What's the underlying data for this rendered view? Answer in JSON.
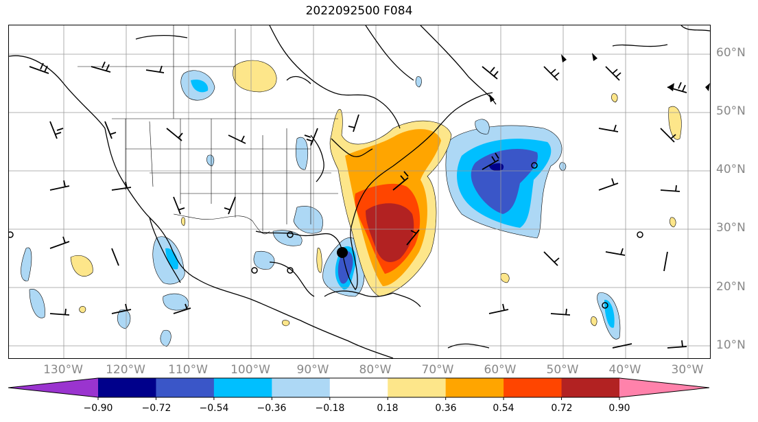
{
  "title": "2022092500 F084",
  "lat_labels": [
    "60°N",
    "50°N",
    "40°N",
    "30°N",
    "20°N",
    "10°N"
  ],
  "lon_labels": [
    "130°W",
    "120°W",
    "110°W",
    "100°W",
    "90°W",
    "80°W",
    "70°W",
    "60°W",
    "50°W",
    "40°W",
    "30°W"
  ],
  "colorbar": {
    "ticks": [
      "−0.90",
      "−0.72",
      "−0.54",
      "−0.36",
      "−0.18",
      "0.18",
      "0.36",
      "0.54",
      "0.72",
      "0.90"
    ],
    "colors": [
      "#9a34cf",
      "#00008b",
      "#3a56c8",
      "#00bfff",
      "#add8f5",
      "#ffffff",
      "#fde68a",
      "#ffa500",
      "#ff4500",
      "#b22222",
      "#ff82ab"
    ],
    "extend": "both"
  },
  "map": {
    "projection": "PlateCarree",
    "lon_range": [
      -138,
      -26
    ],
    "lat_range": [
      8,
      65
    ],
    "gridlines": true,
    "grid_lon_step": 10,
    "grid_lat_step": 10
  }
}
